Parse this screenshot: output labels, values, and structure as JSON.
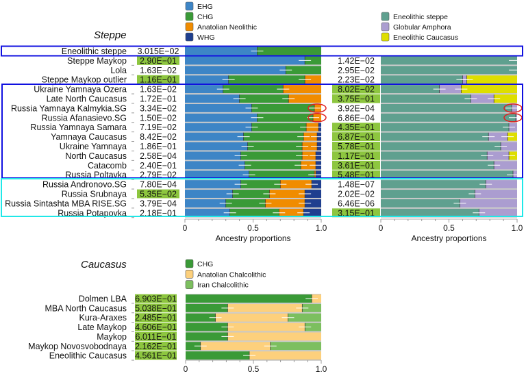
{
  "colors": {
    "EHG": "#3d85c6",
    "CHG": "#3a9a37",
    "Anatolian Neolithic": "#f08c00",
    "WHG": "#1f3f8f",
    "Eneolithic steppe": "#5fa08f",
    "Globular Amphora": "#ab9dd0",
    "Eneolithic Caucasus": "#dede00",
    "Anatolian Chalcolithic": "#fdd07c",
    "Iran Chalcolithic": "#7cbf5f",
    "highlight": "#8dc63f",
    "box_blue": "#1010e0",
    "box_cyan": "#20e8e8",
    "circle": "#e02020"
  },
  "chart_data": [
    {
      "type": "bar",
      "orientation": "horizontal-stacked",
      "title": "Steppe",
      "xlabel": "Ancestry proportions",
      "xlim": [
        0,
        1
      ],
      "xticks": [
        "0",
        "0.5",
        "1.0"
      ],
      "legend": [
        "EHG",
        "CHG",
        "Anatolian Neolithic",
        "WHG"
      ],
      "categories": [
        "Eneolithic steppe",
        "Steppe Maykop",
        "Lola",
        "Steppe Maykop outlier",
        "Ukraine Yamnaya Ozera",
        "Late North Caucasus",
        "Russia Yamnaya Kalmykia.SG",
        "Russia Afanasievo.SG",
        "Russia Yamnaya Samara",
        "Yamnaya Caucasus",
        "Ukraine Yamnaya",
        "North Caucasus",
        "Catacomb",
        "Russia Poltavka",
        "Russia Andronovo.SG",
        "Russia Srubnaya",
        "Russia Sintashta MBA RISE.SG",
        "Russia Potapovka"
      ],
      "p_values": [
        "3.015E−02",
        "2.90E−01",
        "1.63E−02",
        "1.16E−01",
        "1.63E−02",
        "1.72E−01",
        "3.34E−02",
        "1.50E−02",
        "7.19E−02",
        "8.42E−02",
        "1.86E−01",
        "2.58E−04",
        "2.40E−01",
        "2.79E−02",
        "7.80E−04",
        "5.35E−02",
        "3.79E−04",
        "2.18E−01"
      ],
      "p_highlighted": [
        false,
        true,
        false,
        true,
        false,
        false,
        false,
        false,
        false,
        false,
        false,
        false,
        false,
        false,
        false,
        true,
        false,
        false
      ],
      "series": [
        {
          "name": "EHG",
          "values": [
            0.53,
            0.88,
            0.74,
            0.32,
            0.28,
            0.4,
            0.49,
            0.53,
            0.49,
            0.43,
            0.46,
            0.41,
            0.44,
            0.47,
            0.41,
            0.35,
            0.3,
            0.33
          ]
        },
        {
          "name": "CHG",
          "values": [
            0.47,
            0.12,
            0.26,
            0.56,
            0.44,
            0.36,
            0.46,
            0.41,
            0.4,
            0.44,
            0.4,
            0.45,
            0.41,
            0.48,
            0.29,
            0.27,
            0.29,
            0.36
          ]
        },
        {
          "name": "Anatolian Neolithic",
          "values": [
            0,
            0,
            0,
            0.12,
            0.28,
            0.24,
            0.05,
            0.06,
            0.09,
            0.1,
            0.11,
            0.1,
            0.11,
            0.01,
            0.23,
            0.26,
            0.29,
            0.18
          ]
        },
        {
          "name": "WHG",
          "values": [
            0,
            0,
            0,
            0,
            0,
            0,
            0,
            0,
            0.02,
            0.03,
            0.03,
            0.04,
            0.04,
            0.04,
            0.07,
            0.12,
            0.12,
            0.13
          ]
        }
      ],
      "circled": [
        "Russia Yamnaya Kalmykia.SG",
        "Russia Afanasievo.SG"
      ]
    },
    {
      "type": "bar",
      "orientation": "horizontal-stacked",
      "xlabel": "Ancestry proportions",
      "xlim": [
        0,
        1
      ],
      "xticks": [
        "0",
        "0.5",
        "1.0"
      ],
      "legend": [
        "Eneolithic steppe",
        "Globular Amphora",
        "Eneolithic Caucasus"
      ],
      "categories": [
        "Steppe Maykop",
        "Lola",
        "Steppe Maykop outlier",
        "Ukraine Yamnaya Ozera",
        "Late North Caucasus",
        "Russia Yamnaya Kalmykia.SG",
        "Russia Afanasievo.SG",
        "Russia Yamnaya Samara",
        "Yamnaya Caucasus",
        "Ukraine Yamnaya",
        "North Caucasus",
        "Catacomb",
        "Russia Poltavka",
        "Russia Andronovo.SG",
        "Russia Srubnaya",
        "Russia Sintashta MBA RISE.SG",
        "Russia Potapovka"
      ],
      "p_values": [
        "1.42E−02",
        "2.95E−02",
        "2.23E−02",
        "8.02E−02",
        "3.75E−01",
        "3.92E−04",
        "6.86E−04",
        "4.35E−01",
        "6.87E−01",
        "5.78E−01",
        "1.17E−01",
        "3.61E−01",
        "5.48E−01",
        "1.48E−07",
        "2.02E−02",
        "6.46E−06",
        "3.15E−01"
      ],
      "p_highlighted": [
        false,
        false,
        false,
        true,
        true,
        false,
        false,
        true,
        true,
        true,
        true,
        true,
        true,
        false,
        false,
        false,
        true
      ],
      "series": [
        {
          "name": "Eneolithic steppe",
          "values": [
            1.0,
            1.0,
            0.6,
            0.43,
            0.66,
            0.96,
            0.99,
            0.94,
            0.79,
            0.88,
            0.78,
            0.83,
            0.97,
            0.77,
            0.69,
            0.58,
            0.72
          ]
        },
        {
          "name": "Globular Amphora",
          "values": [
            0,
            0,
            0.03,
            0.16,
            0.17,
            0.04,
            0.01,
            0.06,
            0.14,
            0.12,
            0.16,
            0.17,
            0.03,
            0.23,
            0.31,
            0.42,
            0.28
          ]
        },
        {
          "name": "Eneolithic Caucasus",
          "values": [
            0,
            0,
            0.37,
            0.41,
            0.17,
            0,
            0,
            0,
            0.07,
            0,
            0.06,
            0,
            0,
            0,
            0,
            0,
            0
          ]
        }
      ],
      "circled": [
        "Russia Yamnaya Kalmykia.SG",
        "Russia Afanasievo.SG"
      ]
    },
    {
      "type": "bar",
      "orientation": "horizontal-stacked",
      "title": "Caucasus",
      "xlim": [
        0,
        1
      ],
      "xticks": [
        "0",
        "0.5",
        "1.0"
      ],
      "legend": [
        "CHG",
        "Anatolian Chalcolithic",
        "Iran Chalcolithic"
      ],
      "categories": [
        "Dolmen LBA",
        "MBA North Caucasus",
        "Kura-Araxes",
        "Late Maykop",
        "Maykop",
        "Maykop Novosvobodnaya",
        "Eneolithic Caucasus"
      ],
      "p_values": [
        "6.903E−01",
        "5.038E−01",
        "2.485E−01",
        "4.606E−01",
        "6.011E−01",
        "2.162E−01",
        "4.561E−01"
      ],
      "p_highlighted": [
        true,
        true,
        true,
        true,
        true,
        true,
        true
      ],
      "series": [
        {
          "name": "CHG",
          "values": [
            0.93,
            0.31,
            0.22,
            0.31,
            0.31,
            0.11,
            0.47
          ]
        },
        {
          "name": "Anatolian Chalcolithic",
          "values": [
            0.07,
            0.55,
            0.535,
            0.57,
            0.69,
            0.515,
            0.53
          ]
        },
        {
          "name": "Iran Chalcolithic",
          "values": [
            0,
            0.14,
            0.245,
            0.12,
            0,
            0.375,
            0
          ]
        }
      ]
    }
  ]
}
